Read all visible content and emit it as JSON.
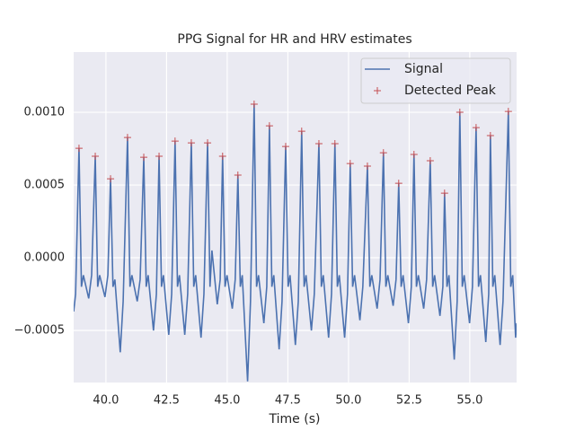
{
  "chart_data": {
    "type": "line",
    "title": "PPG Signal for HR and HRV estimates",
    "x_label": "Time (s)",
    "xlim": [
      38.67,
      56.93
    ],
    "ylim": [
      -0.000858,
      0.001414
    ],
    "xticks": [
      {
        "value": 40,
        "label": "40.0"
      },
      {
        "value": 42.5,
        "label": "42.5"
      },
      {
        "value": 45,
        "label": "45.0"
      },
      {
        "value": 47.5,
        "label": "47.5"
      },
      {
        "value": 50,
        "label": "50.0"
      },
      {
        "value": 52.5,
        "label": "52.5"
      },
      {
        "value": 55,
        "label": "55.0"
      }
    ],
    "yticks": [
      {
        "value": -0.0005,
        "label": "−0.0005"
      },
      {
        "value": 0,
        "label": "0.0000"
      },
      {
        "value": 0.0005,
        "label": "0.0005"
      },
      {
        "value": 0.001,
        "label": "0.0010"
      }
    ],
    "grid": true,
    "legend": "upper right",
    "series": [
      {
        "name": "Signal",
        "type": "line",
        "color": "#4c72b0",
        "x": [
          38.67,
          38.75,
          38.89,
          38.99,
          39.07,
          39.29,
          39.41,
          39.56,
          39.66,
          39.74,
          39.96,
          40.08,
          40.19,
          40.29,
          40.37,
          40.59,
          40.71,
          40.89,
          40.99,
          41.07,
          41.29,
          41.41,
          41.56,
          41.66,
          41.74,
          41.96,
          42.08,
          42.19,
          42.29,
          42.37,
          42.59,
          42.71,
          42.85,
          42.95,
          43.03,
          43.25,
          43.37,
          43.52,
          43.62,
          43.7,
          43.92,
          44.04,
          44.19,
          44.29,
          44.37,
          44.59,
          44.71,
          44.81,
          44.91,
          44.99,
          45.21,
          45.33,
          45.44,
          45.54,
          45.62,
          45.84,
          45.96,
          46.11,
          46.21,
          46.29,
          46.51,
          46.63,
          46.74,
          46.84,
          46.92,
          47.14,
          47.26,
          47.41,
          47.51,
          47.59,
          47.81,
          47.93,
          48.07,
          48.17,
          48.25,
          48.47,
          48.59,
          48.78,
          48.88,
          48.96,
          49.18,
          49.3,
          49.44,
          49.54,
          49.62,
          49.84,
          49.96,
          50.07,
          50.17,
          50.25,
          50.47,
          50.59,
          50.78,
          50.88,
          50.96,
          51.18,
          51.3,
          51.44,
          51.54,
          51.62,
          51.84,
          51.96,
          52.07,
          52.17,
          52.25,
          52.47,
          52.59,
          52.7,
          52.8,
          52.88,
          53.1,
          53.22,
          53.37,
          53.47,
          53.55,
          53.77,
          53.89,
          53.96,
          54.06,
          54.14,
          54.36,
          54.48,
          54.59,
          54.69,
          54.77,
          54.99,
          55.11,
          55.26,
          55.36,
          55.44,
          55.66,
          55.78,
          55.85,
          55.95,
          56.03,
          56.25,
          56.37,
          56.59,
          56.69,
          56.77,
          56.89,
          56.93
        ],
        "values": [
          -0.00037,
          -0.00025,
          0.000753,
          -0.0002,
          -0.00012,
          -0.00028,
          -0.00012,
          0.000698,
          -0.0002,
          -0.00012,
          -0.00027,
          -0.00012,
          0.000543,
          -0.0002,
          -0.00015,
          -0.00065,
          -0.0003,
          0.000827,
          -0.0002,
          -0.00012,
          -0.0003,
          -0.00015,
          0.000691,
          -0.0002,
          -0.00012,
          -0.0005,
          -0.00025,
          0.000698,
          -0.0002,
          -0.00012,
          -0.00053,
          -0.00025,
          0.000802,
          -0.0002,
          -0.00012,
          -0.00053,
          -0.00025,
          0.00079,
          -0.0002,
          -0.00012,
          -0.00055,
          -0.00025,
          0.00079,
          -0.0002,
          5e-05,
          -0.00032,
          -0.00015,
          0.000698,
          -0.0002,
          -0.00012,
          -0.00035,
          -0.00015,
          0.000568,
          -0.0002,
          -0.00012,
          -0.00085,
          -0.0003,
          0.001056,
          -0.0002,
          -0.00012,
          -0.00045,
          -0.0002,
          0.000907,
          -0.0002,
          -0.00012,
          -0.00063,
          -0.0003,
          0.000765,
          -0.0002,
          -0.00012,
          -0.0006,
          -0.0003,
          0.00087,
          -0.0002,
          -0.00012,
          -0.0005,
          -0.00025,
          0.000784,
          -0.0002,
          -0.00012,
          -0.00055,
          -0.00025,
          0.000784,
          -0.0002,
          -0.00012,
          -0.00055,
          -0.00025,
          0.000648,
          -0.0002,
          -0.00012,
          -0.00043,
          -0.0002,
          0.00063,
          -0.0002,
          -0.00012,
          -0.00035,
          -0.00015,
          0.000722,
          -0.0002,
          -0.00012,
          -0.00033,
          -0.00015,
          0.000512,
          -0.0002,
          -0.00012,
          -0.00045,
          -0.0002,
          0.00071,
          -0.0002,
          -0.00012,
          -0.00035,
          -0.00015,
          0.000667,
          -0.0002,
          -0.00012,
          -0.0004,
          -0.0002,
          0.000444,
          -0.0002,
          -0.00012,
          -0.0007,
          -0.0003,
          0.001,
          -0.0002,
          -0.00012,
          -0.00045,
          -0.0002,
          0.000895,
          -0.0002,
          -0.00012,
          -0.00058,
          -0.00025,
          0.00084,
          -0.0002,
          -0.00012,
          -0.0006,
          -0.0003,
          0.001006,
          -0.0002,
          -0.00012,
          -0.00055,
          -0.00045
        ]
      },
      {
        "name": "Detected Peak",
        "type": "scatter",
        "marker": "+",
        "color": "#c44e52",
        "x": [
          38.89,
          39.56,
          40.19,
          40.89,
          41.56,
          42.19,
          42.85,
          43.52,
          44.19,
          44.81,
          45.44,
          46.11,
          46.74,
          47.41,
          48.07,
          48.78,
          49.44,
          50.07,
          50.78,
          51.44,
          52.07,
          52.7,
          53.37,
          53.96,
          54.59,
          55.26,
          55.85,
          56.59
        ],
        "values": [
          0.000753,
          0.000698,
          0.000543,
          0.000827,
          0.000691,
          0.000698,
          0.000802,
          0.00079,
          0.00079,
          0.000698,
          0.000568,
          0.001056,
          0.000907,
          0.000765,
          0.00087,
          0.000784,
          0.000784,
          0.000648,
          0.00063,
          0.000722,
          0.000512,
          0.00071,
          0.000667,
          0.000444,
          0.001,
          0.000895,
          0.00084,
          0.001006
        ]
      }
    ]
  }
}
